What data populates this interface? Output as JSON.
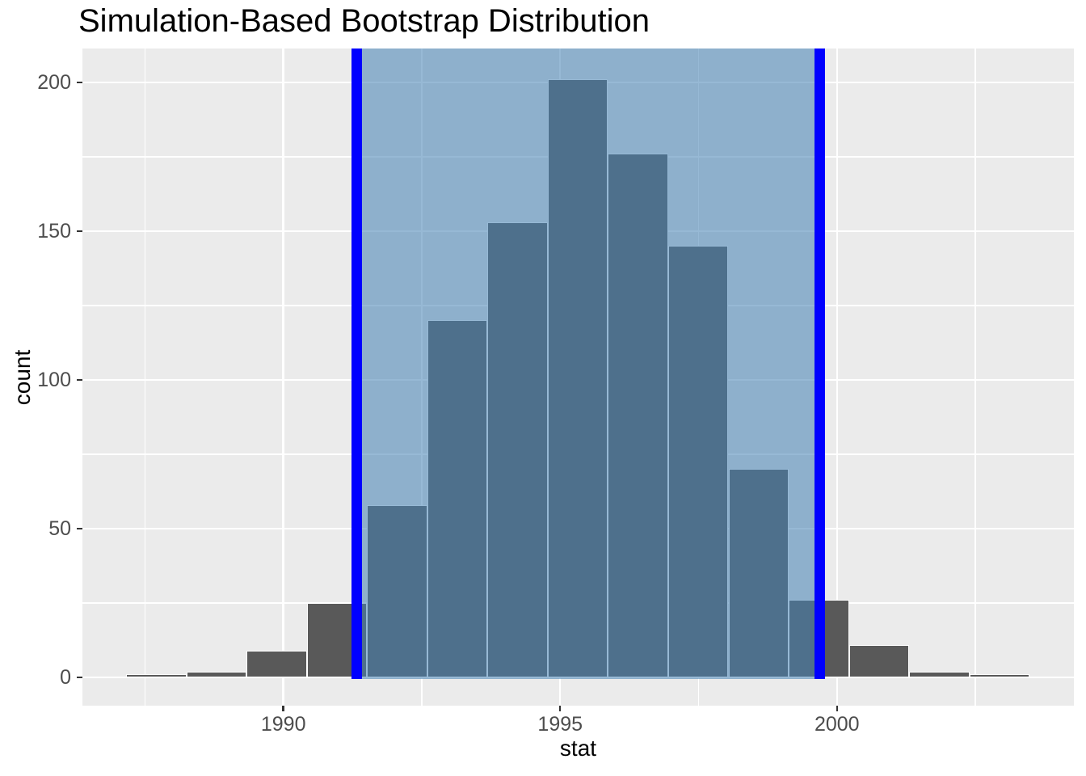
{
  "title": "Simulation-Based Bootstrap Distribution",
  "chart_data": {
    "type": "bar",
    "subtype": "histogram",
    "title": "Simulation-Based Bootstrap Distribution",
    "xlabel": "stat",
    "ylabel": "count",
    "x_ticks": [
      1990,
      1995,
      2000
    ],
    "x_minor_ticks": [
      1987.5,
      1992.5,
      1997.5,
      2002.5
    ],
    "y_ticks": [
      0,
      50,
      100,
      150,
      200
    ],
    "y_minor_ticks": [
      25,
      75,
      125,
      175
    ],
    "xlim": [
      1986.37,
      2004.28
    ],
    "ylim": [
      -9.5,
      211.4
    ],
    "grid": true,
    "legend_position": "none",
    "bins": {
      "start": 1987.16,
      "bin_width": 1.088,
      "counts": [
        1,
        2,
        9,
        25,
        58,
        120,
        153,
        201,
        176,
        145,
        70,
        26,
        11,
        2,
        1
      ]
    },
    "total_replicates": 1000,
    "confidence_interval": {
      "lower": 1991.32,
      "upper": 1999.69
    },
    "colors": {
      "panel_background": "#EBEBEB",
      "bar_fill": "#595959",
      "bar_outline": "#FFFFFF",
      "shade_fill": "#4682B4",
      "shade_alpha": 0.56,
      "ci_line": "#0000FF",
      "gridline": "#FFFFFF",
      "tick_label": "#4D4D4D",
      "tick_mark": "#333333",
      "text": "#000000"
    }
  }
}
